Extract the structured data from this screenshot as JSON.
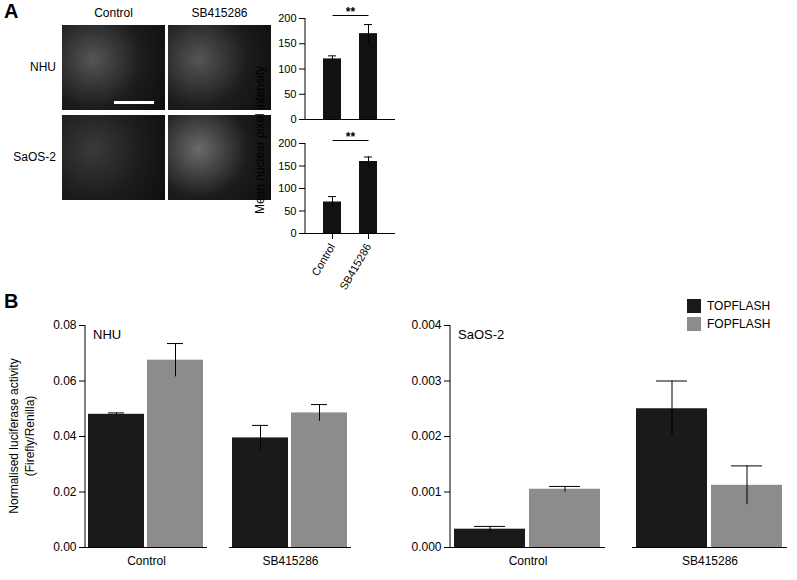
{
  "panel_labels": [
    "A",
    "B"
  ],
  "images": {
    "columns": [
      "Control",
      "SB415286"
    ],
    "rows": [
      "NHU",
      "SaOS-2"
    ]
  },
  "chart_data": [
    {
      "type": "bar",
      "categories": [
        "Control",
        "SB415286"
      ],
      "values": [
        120,
        170
      ],
      "errors": [
        6,
        18
      ],
      "color": "#111111",
      "ylim": [
        0,
        200
      ],
      "yticks": [
        0,
        50,
        100,
        150,
        200
      ],
      "y_label": "Mean nuclear pixel intensity",
      "tick_labels": "y",
      "significance": {
        "between": [
          "Control",
          "SB415286"
        ],
        "label": "**"
      }
    },
    {
      "type": "bar",
      "categories": [
        "Control",
        "SB415286"
      ],
      "values": [
        70,
        160
      ],
      "errors": [
        12,
        10
      ],
      "color": "#111111",
      "ylim": [
        0,
        200
      ],
      "yticks": [
        0,
        50,
        100,
        150,
        200
      ],
      "significance": {
        "between": [
          "Control",
          "SB415286"
        ],
        "label": "**"
      }
    },
    {
      "type": "bar",
      "title": "NHU",
      "categories": [
        "Control",
        "SB415286"
      ],
      "series": [
        {
          "name": "TOPFLASH",
          "color": "#1a1a1a",
          "values": [
            0.048,
            0.0395
          ],
          "errors": [
            0.0005,
            0.0045
          ]
        },
        {
          "name": "FOPFLASH",
          "color": "#8c8c8c",
          "values": [
            0.0675,
            0.0485
          ],
          "errors": [
            0.006,
            0.003
          ]
        }
      ],
      "ylim": [
        0,
        0.08
      ],
      "yticks": [
        {
          "value": 0,
          "label": "0.00"
        },
        {
          "value": 0.02,
          "label": "0.02"
        },
        {
          "value": 0.04,
          "label": "0.04"
        },
        {
          "value": 0.06,
          "label": "0.06"
        },
        {
          "value": 0.08,
          "label": "0.08"
        }
      ],
      "y_label": "Normalised luciferase activity\n(Firefly/Renilla)"
    },
    {
      "type": "bar",
      "title": "SaOS-2",
      "categories": [
        "Control",
        "SB415286"
      ],
      "series": [
        {
          "name": "TOPFLASH",
          "color": "#1a1a1a",
          "values": [
            0.00033,
            0.0025
          ],
          "errors": [
            5e-05,
            0.0005
          ]
        },
        {
          "name": "FOPFLASH",
          "color": "#8c8c8c",
          "values": [
            0.00105,
            0.00112
          ],
          "errors": [
            5e-05,
            0.00035
          ]
        }
      ],
      "ylim": [
        0,
        0.004
      ],
      "yticks": [
        {
          "value": 0,
          "label": "0.000"
        },
        {
          "value": 0.001,
          "label": "0.001"
        },
        {
          "value": 0.002,
          "label": "0.002"
        },
        {
          "value": 0.003,
          "label": "0.003"
        },
        {
          "value": 0.004,
          "label": "0.004"
        }
      ],
      "legend": "top-right"
    }
  ]
}
